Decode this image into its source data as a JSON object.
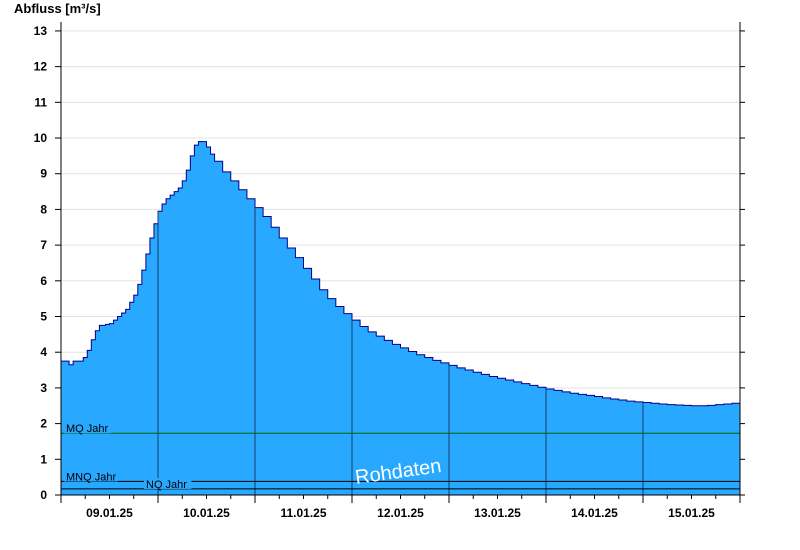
{
  "chart_data": {
    "type": "area",
    "ylabel": "Abfluss [m³/s]",
    "xlabel": "",
    "title": "",
    "ylim": [
      0,
      13.25
    ],
    "xlim_hours": [
      0,
      168
    ],
    "y_ticks": [
      0,
      1,
      2,
      3,
      4,
      5,
      6,
      7,
      8,
      9,
      10,
      11,
      12,
      13
    ],
    "x_tick_labels": [
      "09.01.25",
      "10.01.25",
      "11.01.25",
      "12.01.25",
      "13.01.25",
      "14.01.25",
      "15.01.25"
    ],
    "grid": true,
    "series": [
      {
        "color": "#29a8ff",
        "line_color": "#00008b",
        "points": [
          [
            0,
            3.75
          ],
          [
            1.5,
            3.75
          ],
          [
            2,
            3.65
          ],
          [
            3,
            3.75
          ],
          [
            4.5,
            3.75
          ],
          [
            5.5,
            3.85
          ],
          [
            6.5,
            4.05
          ],
          [
            7.5,
            4.35
          ],
          [
            8.5,
            4.6
          ],
          [
            9.5,
            4.75
          ],
          [
            11,
            4.78
          ],
          [
            12,
            4.8
          ],
          [
            13,
            4.9
          ],
          [
            14,
            5.0
          ],
          [
            15,
            5.1
          ],
          [
            16,
            5.2
          ],
          [
            17,
            5.4
          ],
          [
            18,
            5.6
          ],
          [
            19,
            5.9
          ],
          [
            20,
            6.3
          ],
          [
            21,
            6.75
          ],
          [
            22,
            7.2
          ],
          [
            23,
            7.6
          ],
          [
            24,
            7.95
          ],
          [
            25,
            8.15
          ],
          [
            26,
            8.3
          ],
          [
            27,
            8.4
          ],
          [
            28,
            8.5
          ],
          [
            29,
            8.6
          ],
          [
            30,
            8.8
          ],
          [
            31,
            9.1
          ],
          [
            32,
            9.5
          ],
          [
            33,
            9.8
          ],
          [
            34,
            9.9
          ],
          [
            35,
            9.9
          ],
          [
            36,
            9.75
          ],
          [
            37,
            9.55
          ],
          [
            38,
            9.35
          ],
          [
            40,
            9.05
          ],
          [
            42,
            8.8
          ],
          [
            44,
            8.55
          ],
          [
            46,
            8.3
          ],
          [
            48,
            8.05
          ],
          [
            50,
            7.8
          ],
          [
            52,
            7.5
          ],
          [
            54,
            7.2
          ],
          [
            56,
            6.92
          ],
          [
            58,
            6.65
          ],
          [
            60,
            6.35
          ],
          [
            62,
            6.05
          ],
          [
            64,
            5.75
          ],
          [
            66,
            5.5
          ],
          [
            68,
            5.28
          ],
          [
            70,
            5.08
          ],
          [
            72,
            4.9
          ],
          [
            74,
            4.72
          ],
          [
            76,
            4.57
          ],
          [
            78,
            4.45
          ],
          [
            80,
            4.33
          ],
          [
            82,
            4.22
          ],
          [
            84,
            4.12
          ],
          [
            86,
            4.02
          ],
          [
            88,
            3.93
          ],
          [
            90,
            3.85
          ],
          [
            92,
            3.77
          ],
          [
            94,
            3.7
          ],
          [
            96,
            3.63
          ],
          [
            98,
            3.56
          ],
          [
            100,
            3.5
          ],
          [
            102,
            3.44
          ],
          [
            104,
            3.38
          ],
          [
            106,
            3.32
          ],
          [
            108,
            3.27
          ],
          [
            110,
            3.22
          ],
          [
            112,
            3.17
          ],
          [
            114,
            3.12
          ],
          [
            116,
            3.07
          ],
          [
            118,
            3.02
          ],
          [
            120,
            2.97
          ],
          [
            122,
            2.93
          ],
          [
            124,
            2.89
          ],
          [
            126,
            2.85
          ],
          [
            128,
            2.82
          ],
          [
            130,
            2.79
          ],
          [
            132,
            2.76
          ],
          [
            134,
            2.72
          ],
          [
            136,
            2.69
          ],
          [
            138,
            2.66
          ],
          [
            140,
            2.63
          ],
          [
            142,
            2.61
          ],
          [
            144,
            2.59
          ],
          [
            146,
            2.57
          ],
          [
            148,
            2.55
          ],
          [
            150,
            2.53
          ],
          [
            152,
            2.52
          ],
          [
            154,
            2.51
          ],
          [
            156,
            2.5
          ],
          [
            158,
            2.5
          ],
          [
            160,
            2.51
          ],
          [
            162,
            2.53
          ],
          [
            164,
            2.55
          ],
          [
            166,
            2.57
          ],
          [
            168,
            2.57
          ]
        ]
      }
    ],
    "reference_lines": [
      {
        "label": "MQ Jahr",
        "value": 1.73,
        "color": "#006400"
      },
      {
        "label": "MNQ Jahr",
        "value": 0.38,
        "color": "#000000"
      },
      {
        "label": "NQ Jahr",
        "value": 0.17,
        "color": "#000000"
      }
    ],
    "watermark": "Rohdaten"
  }
}
